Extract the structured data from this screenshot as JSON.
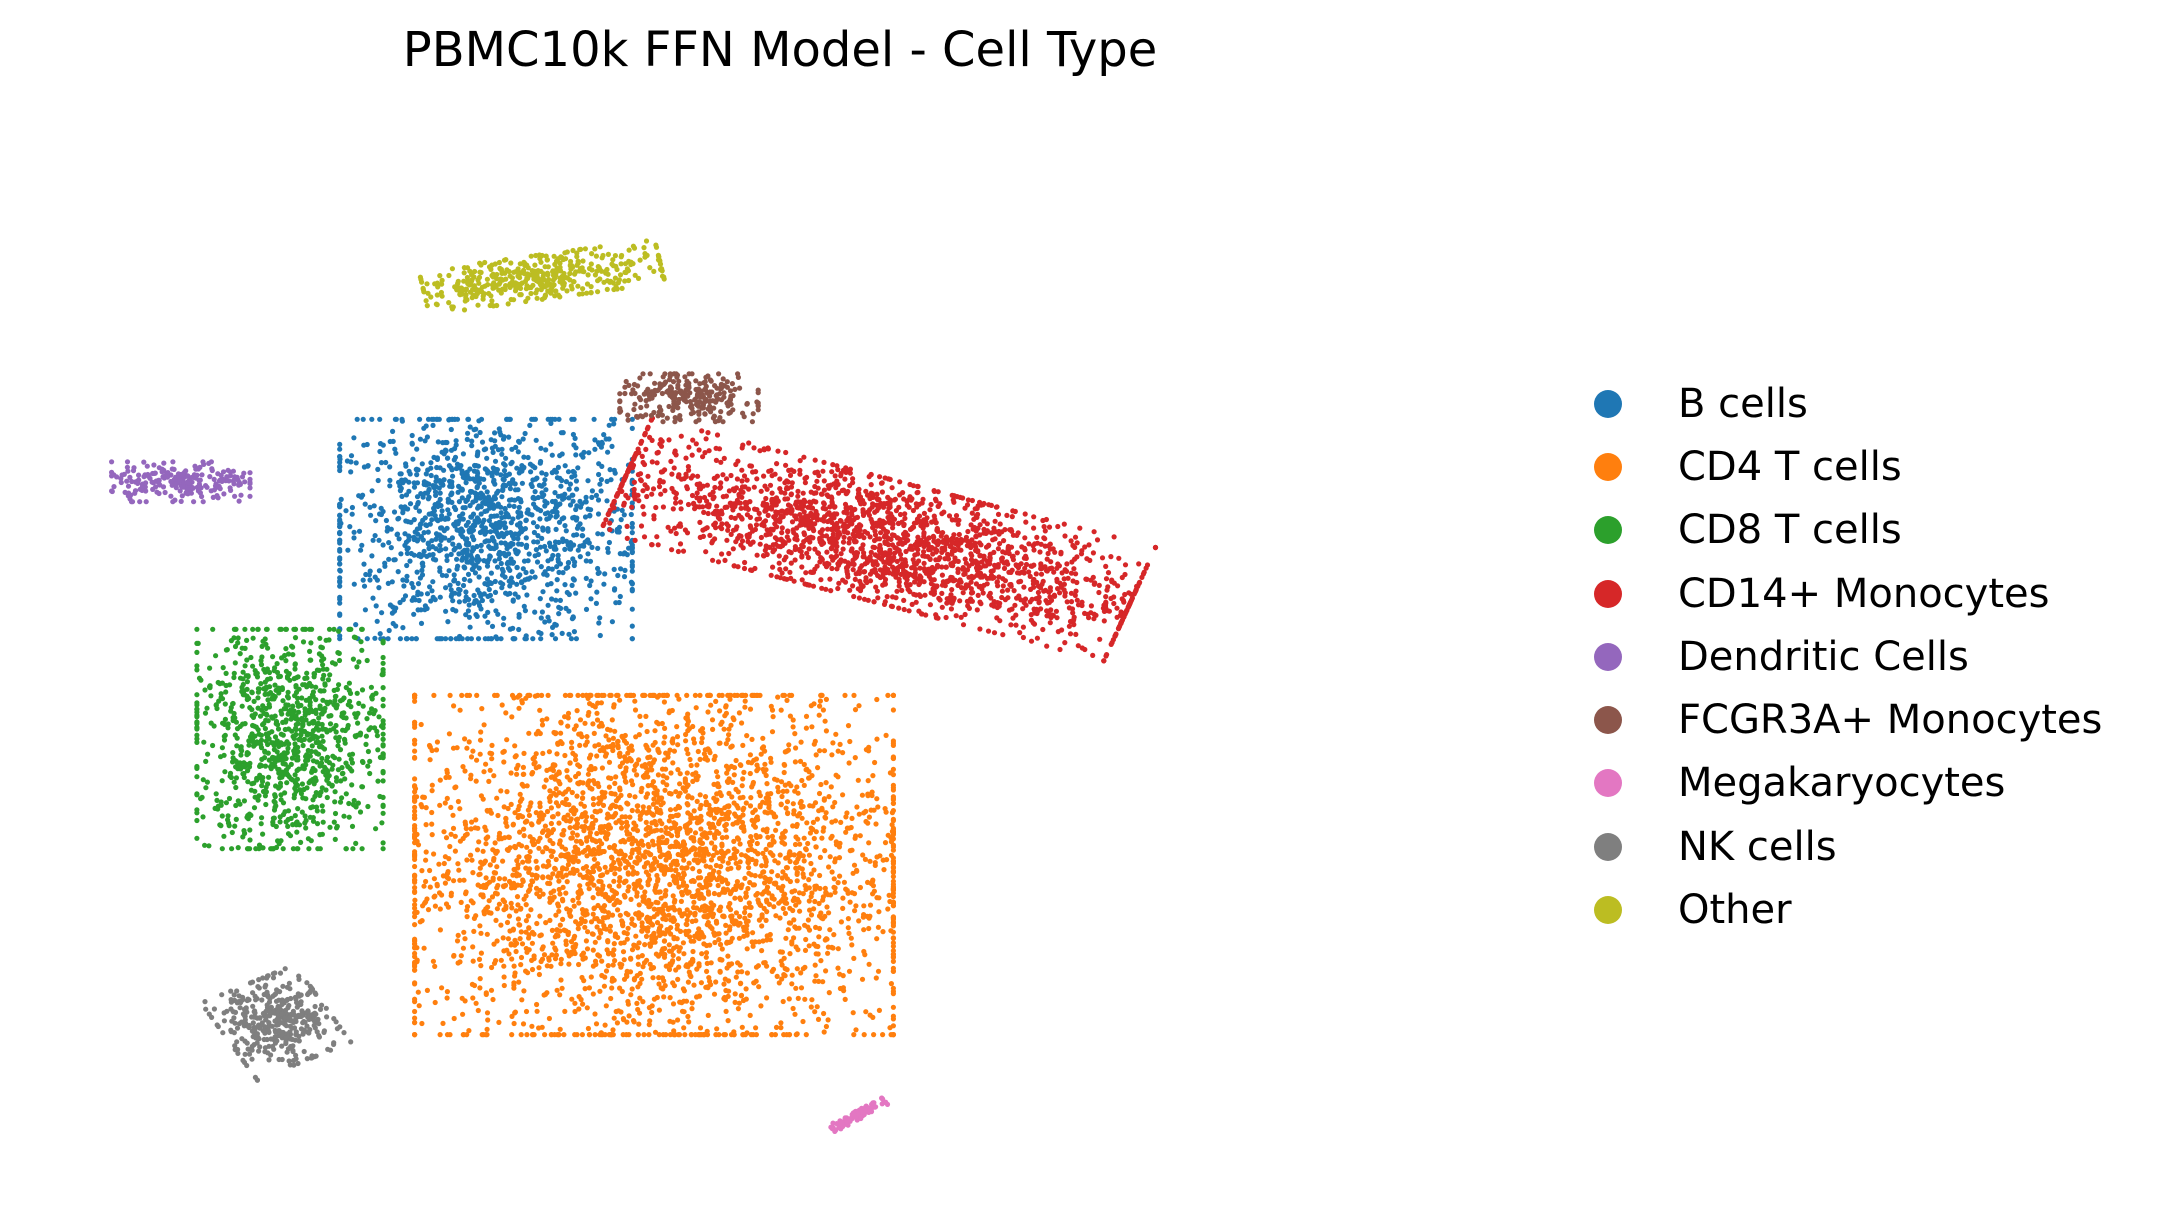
{
  "chart_data": {
    "type": "scatter",
    "title": "PBMC10k FFN Model - Cell Type",
    "xlabel": "",
    "ylabel": "",
    "axes_visible": false,
    "grid": false,
    "legend_position": "right",
    "series": [
      {
        "name": "B cells",
        "color": "#1f77b4",
        "center": [
          0.29,
          0.62
        ],
        "spread": [
          0.055,
          0.055
        ],
        "shape": "blob",
        "n": 1400
      },
      {
        "name": "CD4 T cells",
        "color": "#ff7f0e",
        "center": [
          0.41,
          0.3
        ],
        "spread": [
          0.09,
          0.085
        ],
        "shape": "blob",
        "n": 3400
      },
      {
        "name": "CD8 T cells",
        "color": "#2ca02c",
        "center": [
          0.15,
          0.42
        ],
        "spread": [
          0.035,
          0.055
        ],
        "shape": "blob",
        "n": 1000
      },
      {
        "name": "CD14+ Monocytes",
        "color": "#d62728",
        "center": [
          0.57,
          0.61
        ],
        "spread": [
          0.1,
          0.03
        ],
        "shape": "tilted",
        "angle": -0.33,
        "n": 2000
      },
      {
        "name": "Dendritic Cells",
        "color": "#9467bd",
        "center": [
          0.072,
          0.665
        ],
        "spread": [
          0.026,
          0.01
        ],
        "shape": "blob",
        "n": 220
      },
      {
        "name": "FCGR3A+ Monocytes",
        "color": "#8c564b",
        "center": [
          0.435,
          0.745
        ],
        "spread": [
          0.026,
          0.012
        ],
        "shape": "blob",
        "n": 260
      },
      {
        "name": "Megakaryocytes",
        "color": "#e377c2",
        "center": [
          0.556,
          0.062
        ],
        "spread": [
          0.012,
          0.002
        ],
        "shape": "tilted",
        "angle": 0.6,
        "n": 90
      },
      {
        "name": "NK cells",
        "color": "#7f7f7f",
        "center": [
          0.14,
          0.15
        ],
        "spread": [
          0.02,
          0.022
        ],
        "shape": "tilted",
        "angle": 0.5,
        "n": 380
      },
      {
        "name": "Other",
        "color": "#bcbd22",
        "center": [
          0.33,
          0.86
        ],
        "spread": [
          0.045,
          0.011
        ],
        "shape": "tilted",
        "angle": 0.18,
        "n": 420
      }
    ]
  }
}
